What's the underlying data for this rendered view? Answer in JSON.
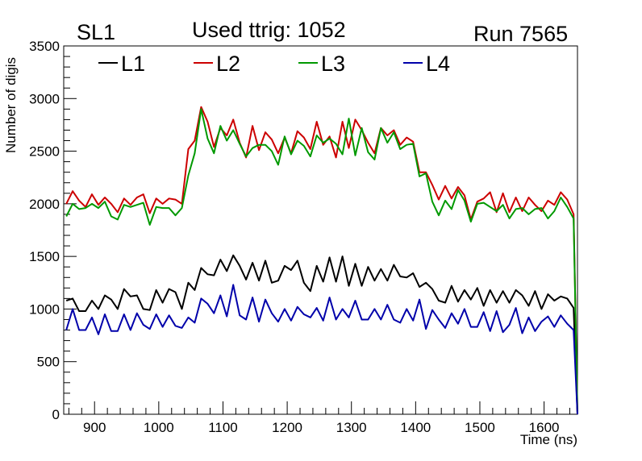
{
  "header": {
    "left": "SL1",
    "center": "Used ttrig: 1052",
    "right": "Run 7565"
  },
  "chart_data": {
    "type": "line",
    "xlabel": "Time (ns)",
    "ylabel": "Number of digis",
    "xlim": [
      852,
      1652
    ],
    "ylim": [
      0,
      3500
    ],
    "xticks": [
      900,
      1000,
      1100,
      1200,
      1300,
      1400,
      1500,
      1600
    ],
    "yticks": [
      0,
      500,
      1000,
      1500,
      2000,
      2500,
      3000,
      3500
    ],
    "grid": false,
    "legend": "top-left",
    "x": [
      856,
      866,
      876,
      886,
      896,
      906,
      916,
      926,
      936,
      946,
      956,
      966,
      976,
      986,
      996,
      1006,
      1016,
      1026,
      1036,
      1046,
      1056,
      1066,
      1076,
      1086,
      1096,
      1106,
      1116,
      1126,
      1136,
      1146,
      1156,
      1166,
      1176,
      1186,
      1196,
      1206,
      1216,
      1226,
      1236,
      1246,
      1256,
      1266,
      1276,
      1286,
      1296,
      1306,
      1316,
      1326,
      1336,
      1346,
      1356,
      1366,
      1376,
      1386,
      1396,
      1406,
      1416,
      1426,
      1436,
      1446,
      1456,
      1466,
      1476,
      1486,
      1496,
      1506,
      1516,
      1526,
      1536,
      1546,
      1556,
      1566,
      1576,
      1586,
      1596,
      1606,
      1616,
      1626,
      1636,
      1646
    ],
    "series": [
      {
        "name": "L1",
        "color": "#000000",
        "values": [
          1080,
          1100,
          980,
          980,
          1080,
          1000,
          1130,
          1090,
          1000,
          1190,
          1120,
          1130,
          1000,
          990,
          1180,
          1060,
          1190,
          1160,
          1000,
          1250,
          1180,
          1390,
          1330,
          1320,
          1470,
          1360,
          1510,
          1410,
          1280,
          1440,
          1270,
          1460,
          1250,
          1270,
          1410,
          1370,
          1460,
          1250,
          1170,
          1410,
          1260,
          1490,
          1260,
          1500,
          1220,
          1430,
          1220,
          1400,
          1270,
          1380,
          1270,
          1420,
          1310,
          1300,
          1340,
          1210,
          1250,
          1190,
          1080,
          1060,
          1220,
          1070,
          1180,
          1090,
          1200,
          1030,
          1180,
          1060,
          1170,
          1060,
          1180,
          1130,
          1030,
          1170,
          1000,
          1140,
          1080,
          1120,
          1100,
          1010
        ]
      },
      {
        "name": "L2",
        "color": "#cc0000",
        "values": [
          2000,
          2120,
          2030,
          1970,
          2090,
          1990,
          2060,
          2000,
          1920,
          2050,
          1990,
          2060,
          2090,
          1910,
          2050,
          2000,
          2050,
          2040,
          2000,
          2520,
          2600,
          2920,
          2780,
          2540,
          2720,
          2650,
          2800,
          2580,
          2440,
          2740,
          2510,
          2680,
          2610,
          2480,
          2630,
          2480,
          2690,
          2630,
          2520,
          2780,
          2560,
          2640,
          2440,
          2780,
          2530,
          2800,
          2700,
          2580,
          2480,
          2720,
          2650,
          2700,
          2560,
          2630,
          2590,
          2300,
          2300,
          2180,
          2040,
          2170,
          2050,
          2160,
          2080,
          1850,
          2020,
          2050,
          2110,
          1920,
          2100,
          1920,
          2060,
          1930,
          2060,
          1990,
          1930,
          2030,
          1990,
          2110,
          2040,
          1900
        ]
      },
      {
        "name": "L3",
        "color": "#009900",
        "values": [
          1880,
          2000,
          1950,
          1960,
          2000,
          1960,
          2020,
          1880,
          1850,
          1990,
          1970,
          1990,
          2010,
          1800,
          1970,
          1960,
          1960,
          1890,
          1960,
          2270,
          2480,
          2900,
          2620,
          2480,
          2740,
          2600,
          2700,
          2570,
          2450,
          2530,
          2560,
          2560,
          2500,
          2370,
          2640,
          2470,
          2600,
          2550,
          2450,
          2650,
          2580,
          2620,
          2570,
          2470,
          2810,
          2460,
          2720,
          2490,
          2420,
          2720,
          2580,
          2680,
          2520,
          2560,
          2570,
          2260,
          2290,
          2020,
          1890,
          2030,
          1950,
          2130,
          2030,
          1830,
          2000,
          2010,
          1970,
          1930,
          1990,
          1860,
          1950,
          1960,
          1900,
          1950,
          1960,
          1860,
          1930,
          2060,
          1970,
          1860
        ]
      },
      {
        "name": "L4",
        "color": "#0000aa",
        "values": [
          800,
          1000,
          800,
          800,
          920,
          760,
          950,
          790,
          790,
          950,
          800,
          960,
          850,
          810,
          950,
          830,
          940,
          840,
          820,
          920,
          870,
          1100,
          1050,
          960,
          1130,
          930,
          1230,
          940,
          900,
          1110,
          880,
          1090,
          960,
          880,
          1000,
          890,
          1020,
          950,
          920,
          1010,
          890,
          1110,
          900,
          1000,
          920,
          1080,
          900,
          900,
          1000,
          900,
          1040,
          900,
          870,
          1000,
          890,
          1090,
          810,
          990,
          900,
          820,
          960,
          860,
          1000,
          830,
          830,
          970,
          790,
          980,
          780,
          850,
          1010,
          770,
          920,
          790,
          880,
          930,
          830,
          940,
          860,
          800
        ]
      }
    ]
  }
}
